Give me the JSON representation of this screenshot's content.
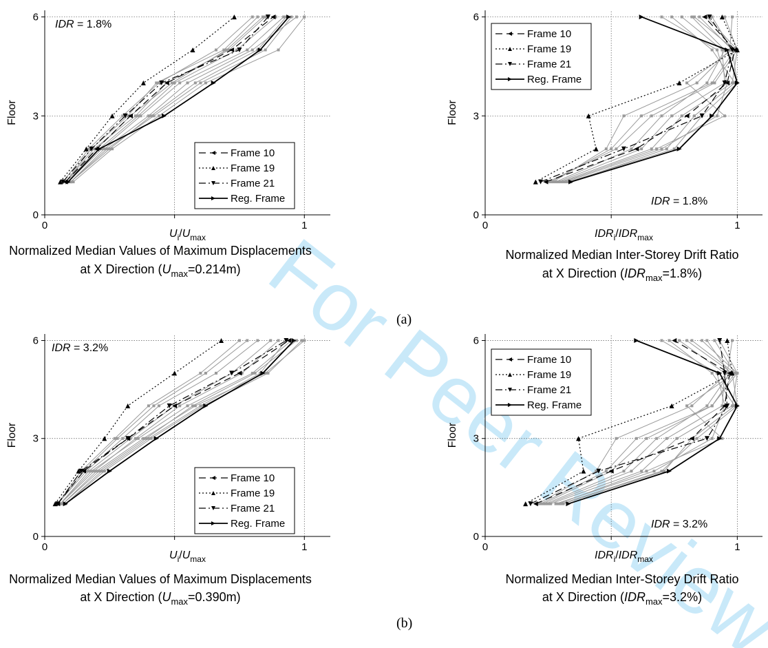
{
  "panel_labels": [
    "(a)",
    "(b)"
  ],
  "watermark": "For Peer Review",
  "legend": [
    "Frame 10",
    "Frame 19",
    "Frame 21",
    "Reg. Frame"
  ],
  "chart_data": [
    {
      "type": "line",
      "id": "a-left",
      "annotation": "IDR = 1.8%",
      "xlabel": "Ui/Umax",
      "ylabel": "Floor",
      "caption": [
        "Normalized Median Values of Maximum Displacements",
        "at X Direction (Umax=0.214m)"
      ],
      "xlim": [
        0,
        1.1
      ],
      "ylim": [
        0,
        6.2
      ],
      "xticks": [
        "0",
        "1"
      ],
      "yticks": [
        "0",
        "3",
        "6"
      ],
      "floors": [
        1,
        2,
        3,
        4,
        5,
        6
      ],
      "series": [
        {
          "name": "Frame 10",
          "x": [
            0.08,
            0.2,
            0.33,
            0.47,
            0.72,
            0.88
          ]
        },
        {
          "name": "Frame 19",
          "x": [
            0.06,
            0.16,
            0.26,
            0.38,
            0.57,
            0.73
          ]
        },
        {
          "name": "Frame 21",
          "x": [
            0.07,
            0.18,
            0.31,
            0.45,
            0.75,
            0.86
          ]
        },
        {
          "name": "Reg. Frame",
          "x": [
            0.09,
            0.21,
            0.46,
            0.65,
            0.83,
            0.94
          ]
        }
      ],
      "grey_series": [
        [
          0.09,
          0.22,
          0.37,
          0.52,
          0.78,
          0.92
        ],
        [
          0.1,
          0.23,
          0.4,
          0.55,
          0.8,
          0.97
        ],
        [
          0.08,
          0.19,
          0.35,
          0.47,
          0.71,
          0.85
        ],
        [
          0.1,
          0.24,
          0.42,
          0.6,
          0.85,
          0.95
        ],
        [
          0.07,
          0.17,
          0.3,
          0.44,
          0.66,
          0.8
        ],
        [
          0.08,
          0.21,
          0.36,
          0.5,
          0.74,
          0.89
        ],
        [
          0.11,
          0.26,
          0.44,
          0.62,
          0.9,
          1.0
        ],
        [
          0.09,
          0.2,
          0.33,
          0.49,
          0.7,
          0.84
        ],
        [
          0.1,
          0.25,
          0.41,
          0.58,
          0.82,
          0.93
        ],
        [
          0.08,
          0.18,
          0.32,
          0.43,
          0.69,
          0.82
        ]
      ]
    },
    {
      "type": "line",
      "id": "a-right",
      "annotation": "IDR = 1.8%",
      "xlabel": "IDRi/IDRmax",
      "ylabel": "Floor",
      "caption": [
        "Normalized Median Inter-Storey Drift Ratio",
        "at X Direction (IDRmax=1.8%)"
      ],
      "xlim": [
        0,
        1.1
      ],
      "ylim": [
        0,
        6.2
      ],
      "xticks": [
        "0",
        "1"
      ],
      "yticks": [
        "0",
        "3",
        "6"
      ],
      "floors": [
        1,
        2,
        3,
        4,
        5,
        6
      ],
      "series": [
        {
          "name": "Frame 10",
          "x": [
            0.24,
            0.6,
            0.8,
            0.96,
            0.99,
            0.87
          ]
        },
        {
          "name": "Frame 19",
          "x": [
            0.2,
            0.44,
            0.41,
            0.77,
            1.0,
            0.94
          ]
        },
        {
          "name": "Frame 21",
          "x": [
            0.22,
            0.55,
            0.86,
            0.95,
            0.98,
            0.89
          ]
        },
        {
          "name": "Reg. Frame",
          "x": [
            0.34,
            0.77,
            0.9,
            1.0,
            0.96,
            0.62
          ]
        }
      ],
      "grey_series": [
        [
          0.26,
          0.5,
          0.62,
          0.9,
          0.99,
          0.83
        ],
        [
          0.28,
          0.58,
          0.7,
          0.88,
          0.95,
          0.82
        ],
        [
          0.3,
          0.66,
          0.78,
          0.98,
          1.0,
          0.95
        ],
        [
          0.32,
          0.7,
          0.92,
          0.96,
          0.92,
          0.7
        ],
        [
          0.27,
          0.48,
          0.55,
          0.84,
          0.97,
          0.98
        ],
        [
          0.33,
          0.75,
          0.86,
          1.0,
          0.98,
          0.85
        ],
        [
          0.29,
          0.62,
          0.74,
          0.95,
          0.94,
          0.78
        ],
        [
          0.31,
          0.68,
          0.95,
          0.8,
          0.98,
          0.9
        ],
        [
          0.25,
          0.52,
          0.66,
          0.91,
          1.0,
          0.88
        ],
        [
          0.34,
          0.72,
          0.83,
          0.99,
          0.9,
          0.74
        ]
      ]
    },
    {
      "type": "line",
      "id": "b-left",
      "annotation": "IDR = 3.2%",
      "xlabel": "Ui/Umax",
      "ylabel": "Floor",
      "caption": [
        "Normalized Median Values of Maximum Displacements",
        "at X Direction (Umax=0.390m)"
      ],
      "xlim": [
        0,
        1.1
      ],
      "ylim": [
        0,
        6.2
      ],
      "xticks": [
        "0",
        "1"
      ],
      "yticks": [
        "0",
        "3",
        "6"
      ],
      "floors": [
        1,
        2,
        3,
        4,
        5,
        6
      ],
      "series": [
        {
          "name": "Frame 10",
          "x": [
            0.05,
            0.15,
            0.32,
            0.5,
            0.75,
            0.94
          ]
        },
        {
          "name": "Frame 19",
          "x": [
            0.04,
            0.13,
            0.23,
            0.32,
            0.5,
            0.68
          ]
        },
        {
          "name": "Frame 21",
          "x": [
            0.05,
            0.14,
            0.32,
            0.48,
            0.72,
            0.93
          ]
        },
        {
          "name": "Reg. Frame",
          "x": [
            0.08,
            0.25,
            0.43,
            0.62,
            0.84,
            0.96
          ]
        }
      ],
      "grey_series": [
        [
          0.06,
          0.18,
          0.36,
          0.55,
          0.8,
          0.95
        ],
        [
          0.07,
          0.2,
          0.38,
          0.58,
          0.85,
          1.0
        ],
        [
          0.05,
          0.16,
          0.3,
          0.44,
          0.66,
          0.82
        ],
        [
          0.08,
          0.22,
          0.4,
          0.6,
          0.83,
          0.93
        ],
        [
          0.05,
          0.15,
          0.28,
          0.42,
          0.62,
          0.78
        ],
        [
          0.06,
          0.19,
          0.35,
          0.52,
          0.76,
          0.9
        ],
        [
          0.07,
          0.21,
          0.39,
          0.57,
          0.81,
          0.97
        ],
        [
          0.06,
          0.17,
          0.33,
          0.5,
          0.72,
          0.87
        ],
        [
          0.08,
          0.23,
          0.41,
          0.61,
          0.86,
          0.99
        ],
        [
          0.05,
          0.14,
          0.27,
          0.4,
          0.6,
          0.75
        ]
      ]
    },
    {
      "type": "line",
      "id": "b-right",
      "annotation": "IDR = 3.2%",
      "xlabel": "IDRi/IDRmax",
      "ylabel": "Floor",
      "caption": [
        "Normalized Median Inter-Storey Drift Ratio",
        "at X Direction (IDRmax=3.2%)"
      ],
      "xlim": [
        0,
        1.1
      ],
      "ylim": [
        0,
        6.2
      ],
      "xticks": [
        "0",
        "1"
      ],
      "yticks": [
        "0",
        "3",
        "6"
      ],
      "floors": [
        1,
        2,
        3,
        4,
        5,
        6
      ],
      "series": [
        {
          "name": "Frame 10",
          "x": [
            0.2,
            0.5,
            0.82,
            0.95,
            0.97,
            0.75
          ]
        },
        {
          "name": "Frame 19",
          "x": [
            0.16,
            0.39,
            0.37,
            0.74,
            0.98,
            0.96
          ]
        },
        {
          "name": "Frame 21",
          "x": [
            0.18,
            0.45,
            0.88,
            0.96,
            0.95,
            0.93
          ]
        },
        {
          "name": "Reg. Frame",
          "x": [
            0.33,
            0.73,
            0.93,
            1.0,
            0.93,
            0.6
          ]
        }
      ],
      "grey_series": [
        [
          0.22,
          0.48,
          0.6,
          0.9,
          0.99,
          0.82
        ],
        [
          0.24,
          0.55,
          0.68,
          0.88,
          0.97,
          0.88
        ],
        [
          0.26,
          0.62,
          0.76,
          0.98,
          1.0,
          0.93
        ],
        [
          0.28,
          0.67,
          0.9,
          0.95,
          0.92,
          0.7
        ],
        [
          0.21,
          0.44,
          0.52,
          0.82,
          0.96,
          0.98
        ],
        [
          0.3,
          0.7,
          0.84,
          1.0,
          0.98,
          0.8
        ],
        [
          0.25,
          0.58,
          0.72,
          0.94,
          0.95,
          0.77
        ],
        [
          0.29,
          0.64,
          0.94,
          0.8,
          0.99,
          0.91
        ],
        [
          0.23,
          0.5,
          0.64,
          0.9,
          1.0,
          0.86
        ],
        [
          0.31,
          0.71,
          0.82,
          0.99,
          0.9,
          0.73
        ]
      ]
    }
  ]
}
